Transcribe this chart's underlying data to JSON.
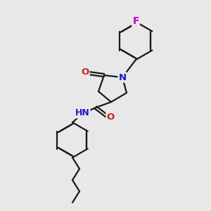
{
  "bg_color": "#e8e8e8",
  "bond_color": "#1a1a1a",
  "bond_width": 1.6,
  "atom_colors": {
    "N": "#1a1acc",
    "O": "#cc2020",
    "F": "#cc00cc",
    "H": "#3a9090",
    "C": "#1a1a1a"
  },
  "font_size": 9.5,
  "fig_size": [
    3.0,
    3.0
  ],
  "dpi": 100
}
